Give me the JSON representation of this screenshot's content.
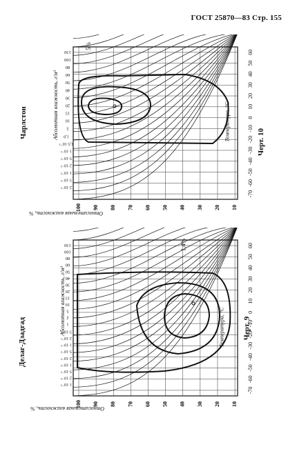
{
  "header": {
    "standard": "ГОСТ 25870—83",
    "page_label": "Стр. 155"
  },
  "charts": [
    {
      "station": "Чарлстон",
      "figure": "Черт. 10",
      "percent_label": "5%",
      "y_title": "Относительная влажность, %",
      "x_title": "Температура, °С",
      "abs_title": "Абсолютная влажность, г/м³",
      "y_ticks": [
        "100",
        "90",
        "80",
        "70",
        "60",
        "50",
        "40",
        "30",
        "20",
        "10"
      ],
      "x_ticks": [
        "-70",
        "-60",
        "-50",
        "-40",
        "-30",
        "-20",
        "-10",
        "0",
        "10",
        "20",
        "30",
        "40",
        "50",
        "60"
      ],
      "abs_ticks": [
        "130",
        "100",
        "80",
        "60",
        "50",
        "40",
        "30",
        "20",
        "15",
        "10",
        "5"
      ],
      "small_ticks": [
        "1,0",
        "1,5·10⁻¹",
        "1·10⁻¹",
        "5·10⁻²",
        "2·10⁻²",
        "1·10⁻²",
        "5·10⁻³",
        "2·10⁻³"
      ]
    },
    {
      "station": "Делаг-Дзадгад",
      "figure": "Черт. 9",
      "percent_label": "1,4%",
      "y_title": "Относительная влажность, %",
      "x_title": "Температура, °С",
      "abs_title": "Абсолютная влажность, г/м³",
      "y_ticks": [
        "100",
        "90",
        "80",
        "70",
        "60",
        "50",
        "40",
        "30",
        "20",
        "10"
      ],
      "x_ticks": [
        "-70",
        "-60",
        "-50",
        "-40",
        "-30",
        "-20",
        "-10",
        "0",
        "10",
        "20",
        "30",
        "40",
        "50",
        "60"
      ],
      "abs_ticks": [
        "130",
        "100",
        "80",
        "60",
        "50",
        "40",
        "30",
        "20",
        "15",
        "10",
        "5",
        "2",
        "1"
      ],
      "small_ticks": [
        "5·10⁻¹",
        "2·10⁻¹",
        "1·10⁻¹",
        "5·10⁻²",
        "2·10⁻²",
        "1·10⁻²",
        "5·10⁻³",
        "2·10⁻³",
        "1·10⁻³"
      ]
    }
  ]
}
